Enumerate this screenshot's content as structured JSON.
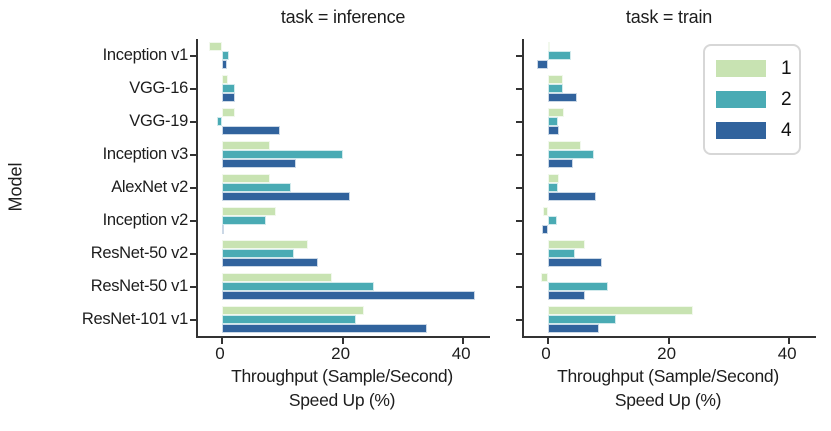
{
  "figure": {
    "ylabel": "Model",
    "xlabel_line1": "Throughput (Sample/Second)",
    "xlabel_line2": "Speed Up (%)",
    "background": "#ffffff",
    "spine_color": "#333333",
    "text_color": "#1d1d1d"
  },
  "legend": {
    "position": "top-right-of-train-panel",
    "entries": [
      {
        "label": "1",
        "color": "#c8e3b2"
      },
      {
        "label": "2",
        "color": "#4aabb4"
      },
      {
        "label": "4",
        "color": "#31639d"
      }
    ]
  },
  "chart_data": {
    "type": "bar",
    "orientation": "horizontal",
    "grid": false,
    "xticks": [
      0,
      20,
      40
    ],
    "xlim": [
      -4,
      44.5
    ],
    "categories": [
      "Inception v1",
      "VGG-16",
      "VGG-19",
      "Inception v3",
      "AlexNet v2",
      "Inception v2",
      "ResNet-50 v2",
      "ResNet-50 v1",
      "ResNet-101 v1"
    ],
    "facets": [
      {
        "title": "task = inference",
        "series": [
          {
            "name": "1",
            "color": "#c8e3b2",
            "values": [
              -2.2,
              1.0,
              2.2,
              8.0,
              8.0,
              9.0,
              14.2,
              18.3,
              23.6
            ]
          },
          {
            "name": "2",
            "color": "#4aabb4",
            "values": [
              1.2,
              2.2,
              -0.9,
              20.0,
              11.4,
              7.3,
              11.9,
              25.2,
              22.3
            ]
          },
          {
            "name": "4",
            "color": "#31639d",
            "values": [
              0.9,
              2.1,
              9.6,
              12.3,
              21.2,
              0.4,
              15.9,
              42.0,
              34.0
            ]
          }
        ]
      },
      {
        "title": "task = train",
        "series": [
          {
            "name": "1",
            "color": "#c8e3b2",
            "values": [
              0.2,
              2.5,
              2.7,
              5.5,
              1.9,
              -0.8,
              6.2,
              -1.1,
              24.0
            ]
          },
          {
            "name": "2",
            "color": "#4aabb4",
            "values": [
              3.8,
              2.5,
              1.6,
              7.7,
              1.7,
              1.5,
              4.4,
              10.0,
              11.3
            ]
          },
          {
            "name": "4",
            "color": "#31639d",
            "values": [
              -1.9,
              4.8,
              1.8,
              4.2,
              7.9,
              -1.0,
              8.9,
              6.1,
              8.5
            ]
          }
        ]
      }
    ]
  }
}
